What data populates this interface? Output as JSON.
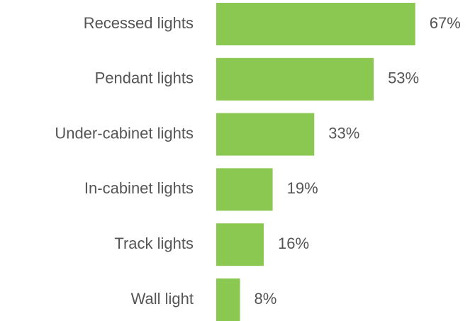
{
  "chart_data": {
    "type": "bar",
    "orientation": "horizontal",
    "categories": [
      "Recessed lights",
      "Pendant lights",
      "Under-cabinet lights",
      "In-cabinet lights",
      "Track lights",
      "Wall light"
    ],
    "values": [
      67,
      53,
      33,
      19,
      16,
      8
    ],
    "value_labels": [
      "67%",
      "53%",
      "33%",
      "19%",
      "16%",
      "8%"
    ],
    "color": "#8bc852"
  }
}
